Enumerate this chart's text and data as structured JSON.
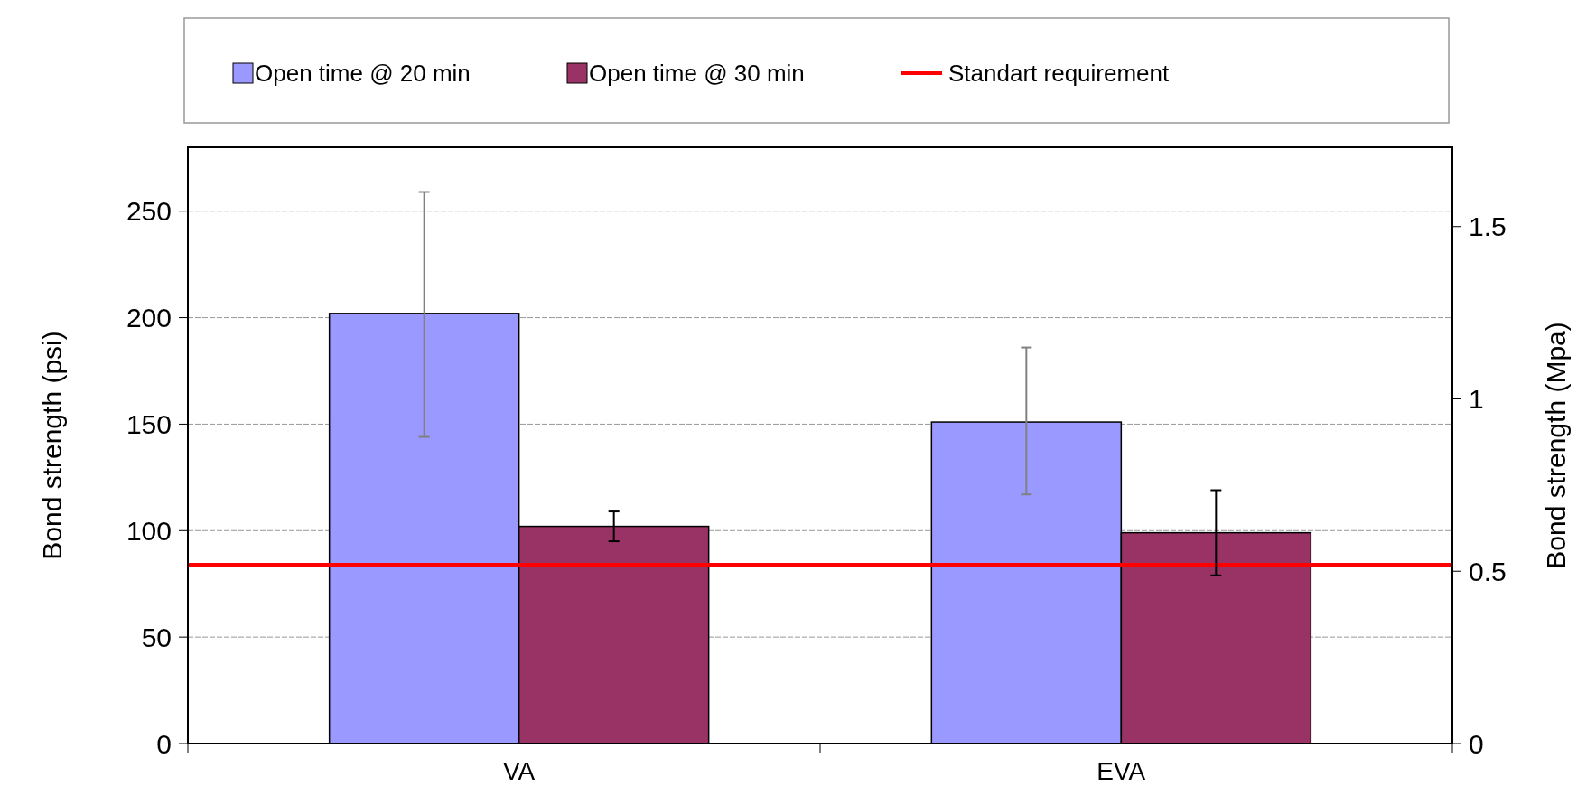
{
  "chart_data": {
    "type": "bar",
    "categories": [
      "VA",
      "EVA"
    ],
    "series": [
      {
        "name": "Open time @ 20 min",
        "color": "#9999ff",
        "values": [
          202,
          151
        ],
        "errors": [
          [
            144,
            259
          ],
          [
            117,
            186
          ]
        ]
      },
      {
        "name": "Open time @ 30 min",
        "color": "#993366",
        "values": [
          102,
          99
        ],
        "errors": [
          [
            95,
            109
          ],
          [
            79,
            119
          ]
        ]
      }
    ],
    "ylabel": "Bond strength (psi)",
    "y2label": "Bond strength (Mpa)",
    "ylim": [
      0,
      280
    ],
    "yticks": [
      0,
      50,
      100,
      150,
      200,
      250
    ],
    "y2lim": [
      0,
      1.73
    ],
    "y2ticks": [
      0,
      0.5,
      1,
      1.5
    ],
    "ref_lines": [
      {
        "axis": "y",
        "value": 84,
        "label": "Standart requirement",
        "color": "#ff0000"
      }
    ],
    "grid": "y",
    "legend": "top"
  }
}
